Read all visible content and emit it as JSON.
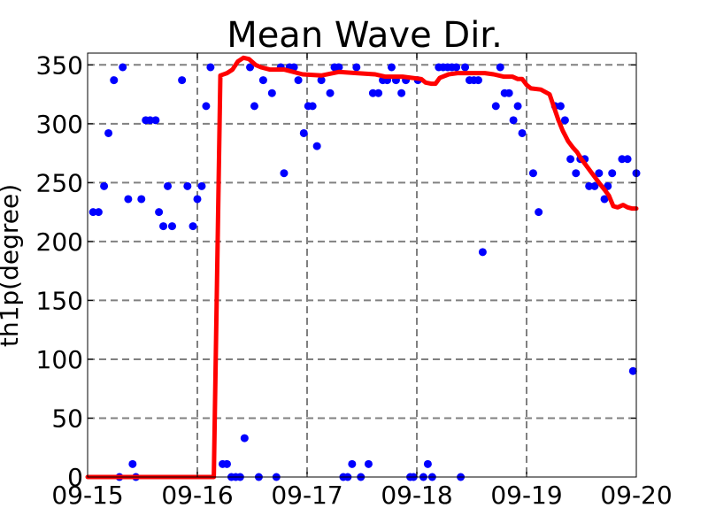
{
  "chart_data": {
    "type": "line",
    "title": "Mean Wave Dir.",
    "xlabel": "",
    "ylabel": "th1p(degree)",
    "xlim": [
      0,
      5
    ],
    "ylim": [
      0,
      360
    ],
    "x_ticks": [
      {
        "value": 0,
        "label": "09-15"
      },
      {
        "value": 1,
        "label": "09-16"
      },
      {
        "value": 2,
        "label": "09-17"
      },
      {
        "value": 3,
        "label": "09-18"
      },
      {
        "value": 4,
        "label": "09-19"
      },
      {
        "value": 5,
        "label": "09-20"
      }
    ],
    "y_ticks": [
      0,
      50,
      100,
      150,
      200,
      250,
      300,
      350
    ],
    "grid": true,
    "series": [
      {
        "kind": "line",
        "color": "#ff0000",
        "points": [
          [
            0.0,
            0
          ],
          [
            1.15,
            0
          ],
          [
            1.21,
            341
          ],
          [
            1.27,
            343
          ],
          [
            1.32,
            346
          ],
          [
            1.37,
            353
          ],
          [
            1.42,
            356
          ],
          [
            1.47,
            355
          ],
          [
            1.53,
            350
          ],
          [
            1.58,
            348
          ],
          [
            1.66,
            346
          ],
          [
            1.79,
            346
          ],
          [
            1.96,
            342
          ],
          [
            2.13,
            341
          ],
          [
            2.29,
            344
          ],
          [
            2.45,
            343
          ],
          [
            2.62,
            342
          ],
          [
            2.71,
            340
          ],
          [
            2.87,
            340
          ],
          [
            3.04,
            338
          ],
          [
            3.08,
            335
          ],
          [
            3.13,
            334
          ],
          [
            3.17,
            334
          ],
          [
            3.21,
            339
          ],
          [
            3.29,
            342
          ],
          [
            3.37,
            343
          ],
          [
            3.54,
            343
          ],
          [
            3.62,
            343
          ],
          [
            3.7,
            342
          ],
          [
            3.79,
            340
          ],
          [
            3.87,
            340
          ],
          [
            3.92,
            338
          ],
          [
            3.96,
            338
          ],
          [
            4.0,
            333
          ],
          [
            4.04,
            330
          ],
          [
            4.13,
            329
          ],
          [
            4.21,
            325
          ],
          [
            4.25,
            314
          ],
          [
            4.29,
            303
          ],
          [
            4.33,
            294
          ],
          [
            4.38,
            285
          ],
          [
            4.42,
            280
          ],
          [
            4.46,
            276
          ],
          [
            4.5,
            270
          ],
          [
            4.58,
            260
          ],
          [
            4.66,
            250
          ],
          [
            4.71,
            244
          ],
          [
            4.75,
            239
          ],
          [
            4.79,
            230
          ],
          [
            4.83,
            229
          ],
          [
            4.88,
            231
          ],
          [
            4.92,
            229
          ],
          [
            4.96,
            228
          ],
          [
            5.0,
            228
          ]
        ]
      },
      {
        "kind": "scatter",
        "color": "#0000ff",
        "points": [
          [
            0.05,
            225
          ],
          [
            0.1,
            225
          ],
          [
            0.15,
            247
          ],
          [
            0.19,
            292
          ],
          [
            0.24,
            337
          ],
          [
            0.29,
            0
          ],
          [
            0.32,
            348
          ],
          [
            0.37,
            236
          ],
          [
            0.41,
            11
          ],
          [
            0.44,
            0
          ],
          [
            0.49,
            236
          ],
          [
            0.53,
            303
          ],
          [
            0.57,
            303
          ],
          [
            0.62,
            303
          ],
          [
            0.65,
            225
          ],
          [
            0.69,
            213
          ],
          [
            0.73,
            247
          ],
          [
            0.77,
            213
          ],
          [
            0.86,
            337
          ],
          [
            0.91,
            247
          ],
          [
            0.96,
            213
          ],
          [
            1.0,
            236
          ],
          [
            1.04,
            247
          ],
          [
            1.08,
            315
          ],
          [
            1.12,
            348
          ],
          [
            1.23,
            11
          ],
          [
            1.27,
            11
          ],
          [
            1.31,
            0
          ],
          [
            1.35,
            0
          ],
          [
            1.39,
            0
          ],
          [
            1.43,
            33
          ],
          [
            1.48,
            348
          ],
          [
            1.52,
            315
          ],
          [
            1.56,
            0
          ],
          [
            1.6,
            337
          ],
          [
            1.68,
            326
          ],
          [
            1.72,
            0
          ],
          [
            1.76,
            348
          ],
          [
            1.79,
            258
          ],
          [
            1.84,
            348
          ],
          [
            1.88,
            348
          ],
          [
            1.92,
            337
          ],
          [
            1.97,
            292
          ],
          [
            2.01,
            315
          ],
          [
            2.05,
            315
          ],
          [
            2.09,
            281
          ],
          [
            2.13,
            337
          ],
          [
            2.21,
            326
          ],
          [
            2.25,
            348
          ],
          [
            2.29,
            348
          ],
          [
            2.33,
            0
          ],
          [
            2.37,
            0
          ],
          [
            2.41,
            11
          ],
          [
            2.45,
            348
          ],
          [
            2.49,
            0
          ],
          [
            2.56,
            11
          ],
          [
            2.6,
            326
          ],
          [
            2.65,
            326
          ],
          [
            2.69,
            337
          ],
          [
            2.73,
            337
          ],
          [
            2.77,
            348
          ],
          [
            2.81,
            337
          ],
          [
            2.86,
            326
          ],
          [
            2.9,
            337
          ],
          [
            2.94,
            0
          ],
          [
            2.97,
            0
          ],
          [
            3.01,
            337
          ],
          [
            3.06,
            0
          ],
          [
            3.1,
            11
          ],
          [
            3.14,
            0
          ],
          [
            3.2,
            348
          ],
          [
            3.24,
            348
          ],
          [
            3.28,
            348
          ],
          [
            3.32,
            348
          ],
          [
            3.36,
            348
          ],
          [
            3.4,
            0
          ],
          [
            3.44,
            348
          ],
          [
            3.48,
            337
          ],
          [
            3.52,
            337
          ],
          [
            3.56,
            337
          ],
          [
            3.6,
            191
          ],
          [
            3.72,
            315
          ],
          [
            3.76,
            348
          ],
          [
            3.8,
            326
          ],
          [
            3.84,
            326
          ],
          [
            3.88,
            303
          ],
          [
            3.92,
            315
          ],
          [
            3.96,
            292
          ],
          [
            4.06,
            258
          ],
          [
            4.11,
            225
          ],
          [
            4.26,
            315
          ],
          [
            4.31,
            315
          ],
          [
            4.35,
            303
          ],
          [
            4.4,
            270
          ],
          [
            4.45,
            258
          ],
          [
            4.49,
            270
          ],
          [
            4.53,
            270
          ],
          [
            4.57,
            247
          ],
          [
            4.62,
            247
          ],
          [
            4.66,
            258
          ],
          [
            4.71,
            236
          ],
          [
            4.74,
            247
          ],
          [
            4.78,
            258
          ],
          [
            4.87,
            270
          ],
          [
            4.92,
            270
          ],
          [
            4.97,
            90
          ],
          [
            5.0,
            258
          ]
        ]
      }
    ]
  }
}
